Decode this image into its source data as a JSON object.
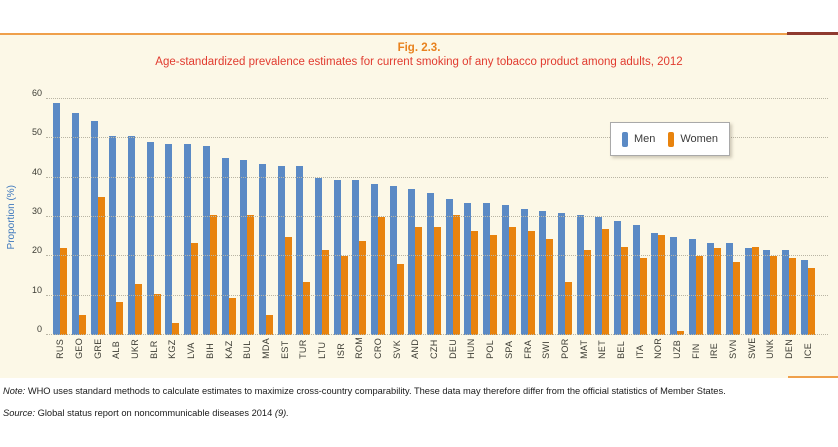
{
  "figure": {
    "fig_label": "Fig. 2.3.",
    "title": "Age-standardized prevalence estimates for current smoking of any tobacco product among adults, 2012"
  },
  "chart_data": {
    "type": "bar",
    "title": "Age-standardized prevalence estimates for current smoking of any tobacco product among adults, 2012",
    "categories": [
      "RUS",
      "GEO",
      "GRE",
      "ALB",
      "UKR",
      "BLR",
      "KGZ",
      "LVA",
      "BIH",
      "KAZ",
      "BUL",
      "MDA",
      "EST",
      "TUR",
      "LTU",
      "ISR",
      "ROM",
      "CRO",
      "SVK",
      "AND",
      "CZH",
      "DEU",
      "HUN",
      "POL",
      "SPA",
      "FRA",
      "SWI",
      "POR",
      "MAT",
      "NET",
      "BEL",
      "ITA",
      "NOR",
      "UZB",
      "FIN",
      "IRE",
      "SVN",
      "SWE",
      "UNK",
      "DEN",
      "ICE"
    ],
    "series": [
      {
        "name": "Men",
        "color": "#5b8ac5",
        "values": [
          59,
          56.5,
          54.5,
          50.5,
          50.5,
          49,
          48.5,
          48.5,
          48,
          45,
          44.5,
          43.5,
          43,
          43,
          40,
          39.5,
          39.5,
          38.5,
          38,
          37,
          36,
          34.5,
          33.5,
          33.5,
          33,
          32,
          31.5,
          31,
          30.5,
          30,
          29,
          28,
          26,
          25,
          24.5,
          23.5,
          23.5,
          22,
          21.5,
          21.5,
          19
        ]
      },
      {
        "name": "Women",
        "color": "#e8830e",
        "values": [
          22,
          5,
          35,
          8.5,
          13,
          10.5,
          3,
          23.5,
          30.5,
          9.5,
          30.5,
          5,
          25,
          13.5,
          21.5,
          20,
          24,
          30,
          18,
          27.5,
          27.5,
          30.5,
          26.5,
          25.5,
          27.5,
          26.5,
          24.5,
          13.5,
          21.5,
          27,
          22.5,
          19.5,
          25.5,
          1,
          20,
          22,
          18.5,
          22.5,
          20,
          19.5,
          17
        ]
      }
    ],
    "xlabel": "",
    "ylabel": "Proportion (%)",
    "ylim": [
      0,
      60
    ],
    "yticks": [
      0,
      10,
      20,
      30,
      40,
      50,
      60
    ],
    "grid": "horizontal-dotted",
    "legend_position": "top-right-inside"
  },
  "notes": {
    "note_label": "Note:",
    "note_text": " WHO uses standard methods to calculate estimates to maximize cross-country comparability. These data may therefore differ from the official statistics of Member States.",
    "source_label": "Source:",
    "source_text": " Global status report on noncommunicable diseases 2014 ",
    "source_ref": "(9)."
  },
  "colors": {
    "fig_label_orange": "#e8821e",
    "title_red": "#e13b2f",
    "rule_orange": "#efa04b",
    "rule_dark_red": "#8f3a2f",
    "panel_cream": "#fcf8e7",
    "axis_label_blue": "#3e78be",
    "men_blue": "#5b8ac5",
    "women_orange": "#e8830e"
  }
}
